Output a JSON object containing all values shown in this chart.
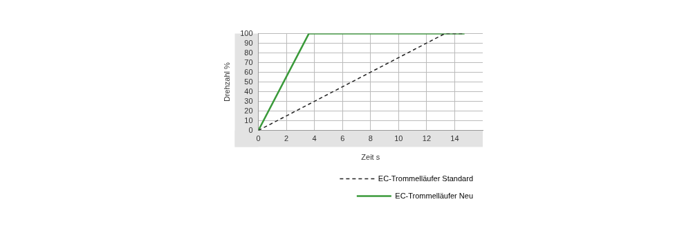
{
  "chart_data": {
    "type": "line",
    "xlabel": "Zeit s",
    "ylabel": "Drehzahl %",
    "xlim": [
      0,
      16
    ],
    "xticks": [
      0,
      2,
      4,
      6,
      8,
      10,
      12,
      14
    ],
    "ylim": [
      0,
      100
    ],
    "yticks": [
      0,
      10,
      20,
      30,
      40,
      50,
      60,
      70,
      80,
      90,
      100
    ],
    "grid": true,
    "legend": "bottom",
    "marker": "none",
    "series": [
      {
        "name": "EC-Trommelläufer Standard",
        "color": "#222222",
        "line_style": "dashed",
        "x": [
          0,
          13.3,
          14.7
        ],
        "values": [
          0,
          100,
          100
        ]
      },
      {
        "name": "EC-Trommelläufer Neu",
        "color": "#3a9a3a",
        "line_style": "solid",
        "x": [
          0,
          3.6,
          14.7
        ],
        "values": [
          0,
          100,
          100
        ]
      }
    ]
  }
}
